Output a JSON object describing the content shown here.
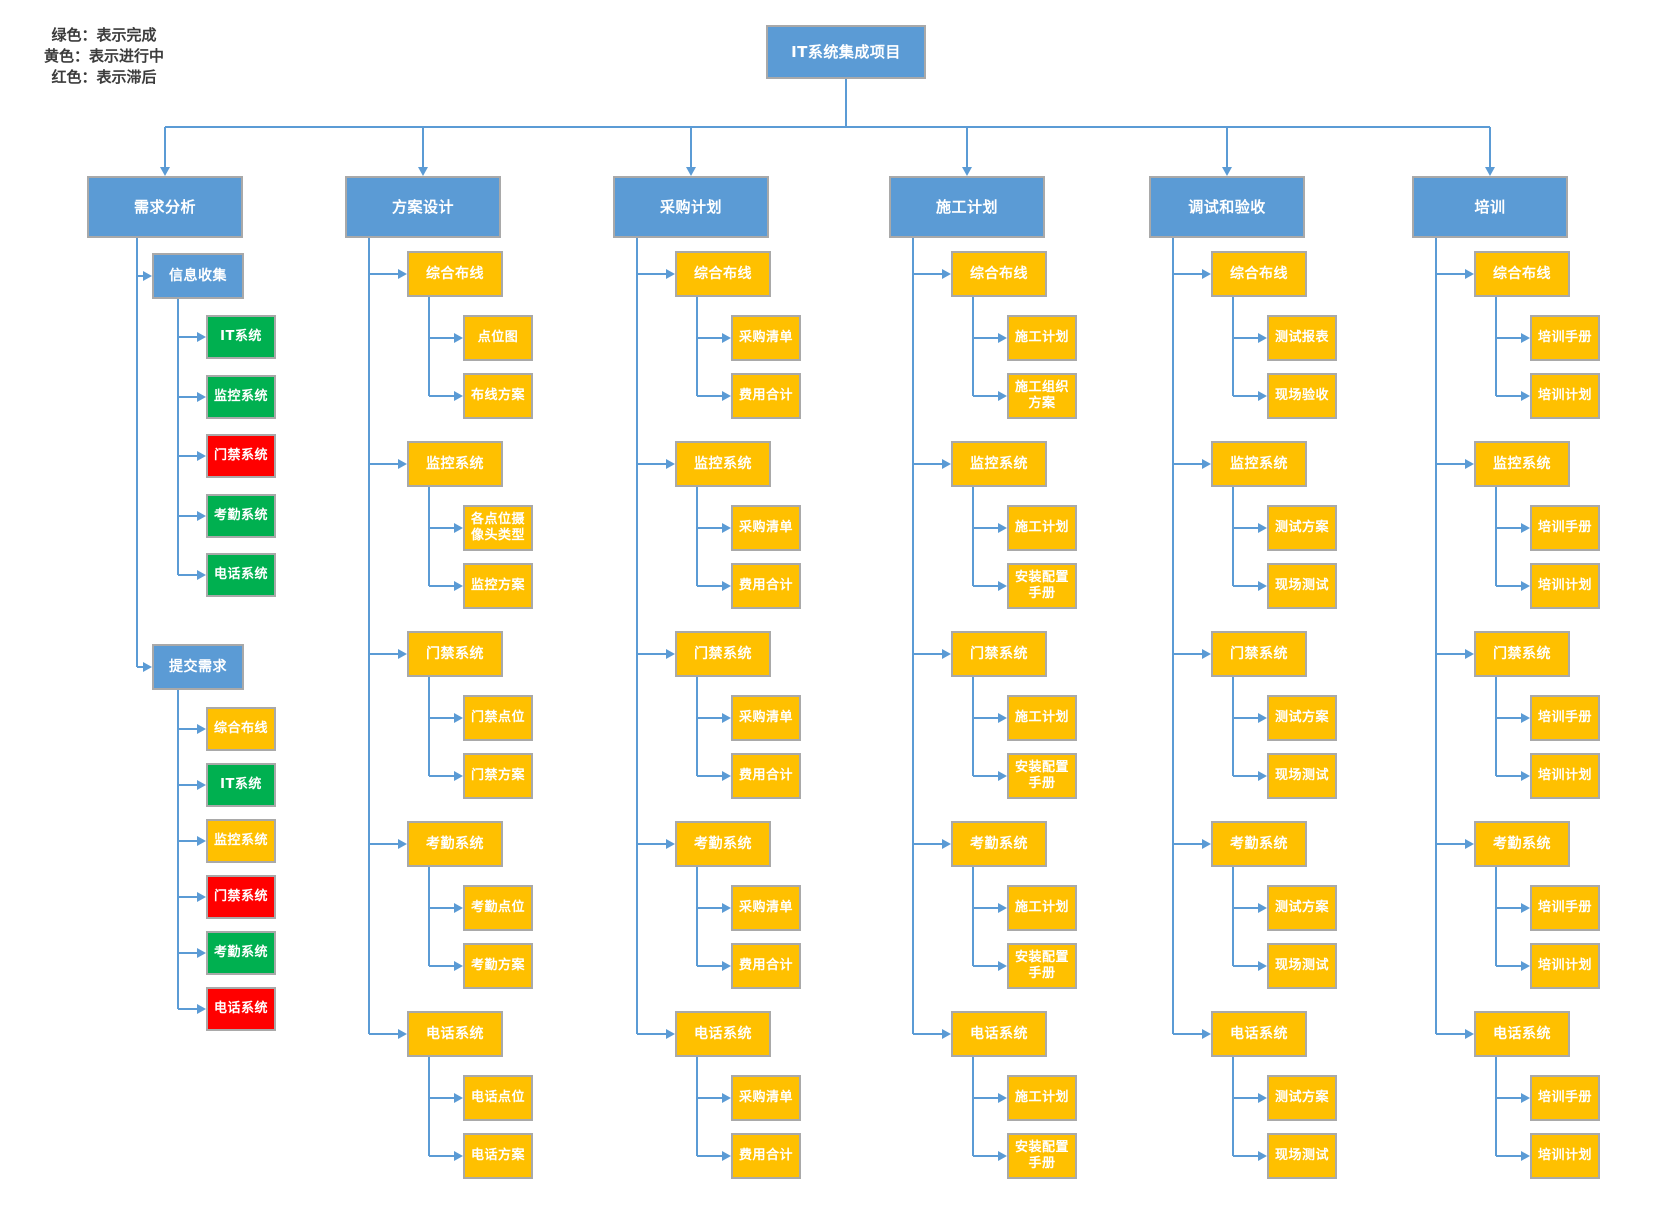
{
  "legend": [
    {
      "color_key": "green",
      "text": "绿色：表示完成"
    },
    {
      "color_key": "yellow",
      "text": "黄色：表示进行中"
    },
    {
      "color_key": "red",
      "text": "红色：表示滞后"
    }
  ],
  "root": {
    "label": "IT系统集成项目",
    "color": "blue"
  },
  "palette": {
    "blue": "#5B9BD5",
    "yellow": "#FFC000",
    "green": "#00B050",
    "red": "#FF0000",
    "line": "#5B9BD5",
    "border": "#A9A9A9"
  },
  "status_meaning": {
    "green": "完成",
    "yellow": "进行中",
    "red": "滞后"
  },
  "columns": [
    {
      "header": {
        "label": "需求分析",
        "color": "blue"
      },
      "groups": [
        {
          "label": "信息收集",
          "color": "blue",
          "children": [
            {
              "label": "IT系统",
              "color": "green"
            },
            {
              "label": "监控系统",
              "color": "green"
            },
            {
              "label": "门禁系统",
              "color": "red"
            },
            {
              "label": "考勤系统",
              "color": "green"
            },
            {
              "label": "电话系统",
              "color": "green"
            }
          ]
        },
        {
          "label": "提交需求",
          "color": "blue",
          "children": [
            {
              "label": "综合布线",
              "color": "yellow"
            },
            {
              "label": "IT系统",
              "color": "green"
            },
            {
              "label": "监控系统",
              "color": "yellow"
            },
            {
              "label": "门禁系统",
              "color": "red"
            },
            {
              "label": "考勤系统",
              "color": "green"
            },
            {
              "label": "电话系统",
              "color": "red"
            }
          ]
        }
      ]
    },
    {
      "header": {
        "label": "方案设计",
        "color": "blue"
      },
      "groups": [
        {
          "label": "综合布线",
          "color": "yellow",
          "children": [
            {
              "label": "点位图",
              "color": "yellow"
            },
            {
              "label": "布线方案",
              "color": "yellow"
            }
          ]
        },
        {
          "label": "监控系统",
          "color": "yellow",
          "children": [
            {
              "label": "各点位摄像头类型",
              "color": "yellow"
            },
            {
              "label": "监控方案",
              "color": "yellow"
            }
          ]
        },
        {
          "label": "门禁系统",
          "color": "yellow",
          "children": [
            {
              "label": "门禁点位",
              "color": "yellow"
            },
            {
              "label": "门禁方案",
              "color": "yellow"
            }
          ]
        },
        {
          "label": "考勤系统",
          "color": "yellow",
          "children": [
            {
              "label": "考勤点位",
              "color": "yellow"
            },
            {
              "label": "考勤方案",
              "color": "yellow"
            }
          ]
        },
        {
          "label": "电话系统",
          "color": "yellow",
          "children": [
            {
              "label": "电话点位",
              "color": "yellow"
            },
            {
              "label": "电话方案",
              "color": "yellow"
            }
          ]
        }
      ]
    },
    {
      "header": {
        "label": "采购计划",
        "color": "blue"
      },
      "groups": [
        {
          "label": "综合布线",
          "color": "yellow",
          "children": [
            {
              "label": "采购清单",
              "color": "yellow"
            },
            {
              "label": "费用合计",
              "color": "yellow"
            }
          ]
        },
        {
          "label": "监控系统",
          "color": "yellow",
          "children": [
            {
              "label": "采购清单",
              "color": "yellow"
            },
            {
              "label": "费用合计",
              "color": "yellow"
            }
          ]
        },
        {
          "label": "门禁系统",
          "color": "yellow",
          "children": [
            {
              "label": "采购清单",
              "color": "yellow"
            },
            {
              "label": "费用合计",
              "color": "yellow"
            }
          ]
        },
        {
          "label": "考勤系统",
          "color": "yellow",
          "children": [
            {
              "label": "采购清单",
              "color": "yellow"
            },
            {
              "label": "费用合计",
              "color": "yellow"
            }
          ]
        },
        {
          "label": "电话系统",
          "color": "yellow",
          "children": [
            {
              "label": "采购清单",
              "color": "yellow"
            },
            {
              "label": "费用合计",
              "color": "yellow"
            }
          ]
        }
      ]
    },
    {
      "header": {
        "label": "施工计划",
        "color": "blue"
      },
      "groups": [
        {
          "label": "综合布线",
          "color": "yellow",
          "children": [
            {
              "label": "施工计划",
              "color": "yellow"
            },
            {
              "label": "施工组织方案",
              "color": "yellow"
            }
          ]
        },
        {
          "label": "监控系统",
          "color": "yellow",
          "children": [
            {
              "label": "施工计划",
              "color": "yellow"
            },
            {
              "label": "安装配置手册",
              "color": "yellow"
            }
          ]
        },
        {
          "label": "门禁系统",
          "color": "yellow",
          "children": [
            {
              "label": "施工计划",
              "color": "yellow"
            },
            {
              "label": "安装配置手册",
              "color": "yellow"
            }
          ]
        },
        {
          "label": "考勤系统",
          "color": "yellow",
          "children": [
            {
              "label": "施工计划",
              "color": "yellow"
            },
            {
              "label": "安装配置手册",
              "color": "yellow"
            }
          ]
        },
        {
          "label": "电话系统",
          "color": "yellow",
          "children": [
            {
              "label": "施工计划",
              "color": "yellow"
            },
            {
              "label": "安装配置手册",
              "color": "yellow"
            }
          ]
        }
      ]
    },
    {
      "header": {
        "label": "调试和验收",
        "color": "blue"
      },
      "groups": [
        {
          "label": "综合布线",
          "color": "yellow",
          "children": [
            {
              "label": "测试报表",
              "color": "yellow"
            },
            {
              "label": "现场验收",
              "color": "yellow"
            }
          ]
        },
        {
          "label": "监控系统",
          "color": "yellow",
          "children": [
            {
              "label": "测试方案",
              "color": "yellow"
            },
            {
              "label": "现场测试",
              "color": "yellow"
            }
          ]
        },
        {
          "label": "门禁系统",
          "color": "yellow",
          "children": [
            {
              "label": "测试方案",
              "color": "yellow"
            },
            {
              "label": "现场测试",
              "color": "yellow"
            }
          ]
        },
        {
          "label": "考勤系统",
          "color": "yellow",
          "children": [
            {
              "label": "测试方案",
              "color": "yellow"
            },
            {
              "label": "现场测试",
              "color": "yellow"
            }
          ]
        },
        {
          "label": "电话系统",
          "color": "yellow",
          "children": [
            {
              "label": "测试方案",
              "color": "yellow"
            },
            {
              "label": "现场测试",
              "color": "yellow"
            }
          ]
        }
      ]
    },
    {
      "header": {
        "label": "培训",
        "color": "blue"
      },
      "groups": [
        {
          "label": "综合布线",
          "color": "yellow",
          "children": [
            {
              "label": "培训手册",
              "color": "yellow"
            },
            {
              "label": "培训计划",
              "color": "yellow"
            }
          ]
        },
        {
          "label": "监控系统",
          "color": "yellow",
          "children": [
            {
              "label": "培训手册",
              "color": "yellow"
            },
            {
              "label": "培训计划",
              "color": "yellow"
            }
          ]
        },
        {
          "label": "门禁系统",
          "color": "yellow",
          "children": [
            {
              "label": "培训手册",
              "color": "yellow"
            },
            {
              "label": "培训计划",
              "color": "yellow"
            }
          ]
        },
        {
          "label": "考勤系统",
          "color": "yellow",
          "children": [
            {
              "label": "培训手册",
              "color": "yellow"
            },
            {
              "label": "培训计划",
              "color": "yellow"
            }
          ]
        },
        {
          "label": "电话系统",
          "color": "yellow",
          "children": [
            {
              "label": "培训手册",
              "color": "yellow"
            },
            {
              "label": "培训计划",
              "color": "yellow"
            }
          ]
        }
      ]
    }
  ]
}
